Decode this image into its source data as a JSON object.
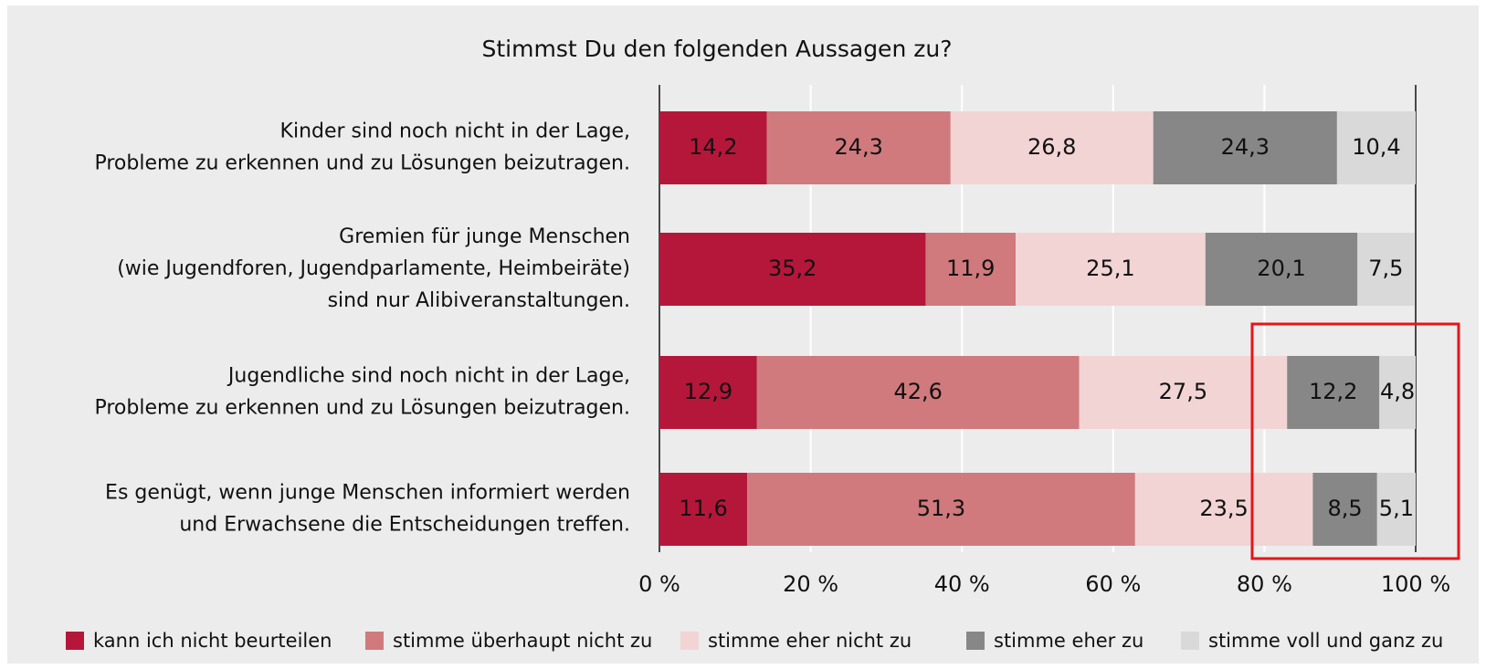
{
  "chart_data": {
    "type": "stacked-bar-horizontal",
    "title": "Stimmst Du den folgenden Aussagen zu?",
    "categories": [
      [
        "Kinder sind noch nicht in der Lage,",
        "Probleme zu erkennen und zu Lösungen beizutragen."
      ],
      [
        "Gremien für junge Menschen",
        "(wie Jugendforen, Jugendparlamente, Heimbeiräte)",
        "sind nur Alibiveranstaltungen."
      ],
      [
        "Jugendliche sind noch nicht in der Lage,",
        "Probleme zu erkennen und zu Lösungen beizutragen."
      ],
      [
        "Es genügt, wenn junge Menschen informiert werden",
        "und Erwachsene die Entscheidungen treffen."
      ]
    ],
    "series": [
      {
        "name": "kann ich nicht beurteilen",
        "color": "#b5173a",
        "values": [
          14.2,
          35.2,
          12.9,
          11.6
        ],
        "value_labels": [
          "14,2",
          "35,2",
          "12,9",
          "11,6"
        ]
      },
      {
        "name": "stimme überhaupt nicht zu",
        "color": "#d07a7e",
        "values": [
          24.3,
          11.9,
          42.6,
          51.3
        ],
        "value_labels": [
          "24,3",
          "11,9",
          "42,6",
          "51,3"
        ]
      },
      {
        "name": "stimme eher nicht zu",
        "color": "#f2d4d4",
        "values": [
          26.8,
          25.1,
          27.5,
          23.5
        ],
        "value_labels": [
          "26,8",
          "25,1",
          "27,5",
          "23,5"
        ]
      },
      {
        "name": "stimme eher zu",
        "color": "#878787",
        "values": [
          24.3,
          20.1,
          12.2,
          8.5
        ],
        "value_labels": [
          "24,3",
          "20,1",
          "12,2",
          "8,5"
        ]
      },
      {
        "name": "stimme voll und ganz zu",
        "color": "#d9d9d9",
        "values": [
          10.4,
          7.5,
          4.8,
          5.1
        ],
        "value_labels": [
          "10,4",
          "7,5",
          "4,8",
          "5,1"
        ]
      }
    ],
    "xlim": [
      0,
      100
    ],
    "xticks": [
      {
        "value": 0,
        "label": "0 %"
      },
      {
        "value": 20,
        "label": "20 %"
      },
      {
        "value": 40,
        "label": "40 %"
      },
      {
        "value": 60,
        "label": "60 %"
      },
      {
        "value": 80,
        "label": "80 %"
      },
      {
        "value": 100,
        "label": "100 %"
      }
    ],
    "grid": true,
    "legend": "bottom"
  }
}
